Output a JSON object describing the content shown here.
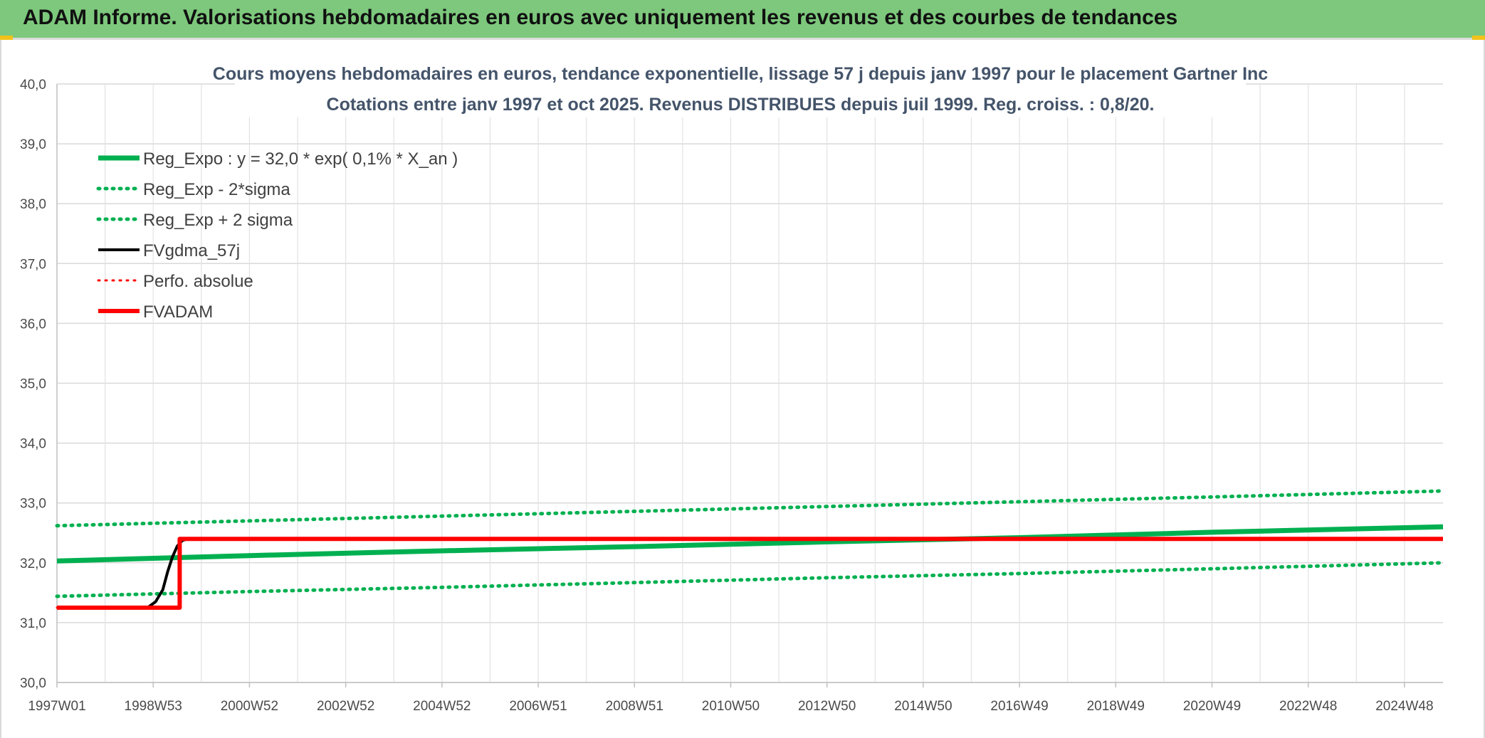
{
  "banner": {
    "title": "ADAM Informe. Valorisations hebdomadaires en euros avec uniquement les revenus et des courbes de tendances"
  },
  "colors": {
    "banner_bg": "#7dc87c",
    "green": "#00b050",
    "black": "#000000",
    "red": "#ff0000",
    "title": "#44546a"
  },
  "chart_data": {
    "type": "line",
    "title": "Cours moyens hebdomadaires en euros, tendance exponentielle, lissage 57 j depuis janv 1997 pour le placement Gartner Inc",
    "subtitle": "Cotations entre janv 1997 et oct 2025. Revenus DISTRIBUES depuis juil 1999. Reg. croiss. : 0,8/20.",
    "ylim": [
      30,
      40
    ],
    "y_ticks": [
      "30,0",
      "31,0",
      "32,0",
      "33,0",
      "34,0",
      "35,0",
      "36,0",
      "37,0",
      "38,0",
      "39,0",
      "40,0"
    ],
    "xlim": [
      1997.0,
      2025.8
    ],
    "x_tick_labels": [
      "1997W01",
      "1998W53",
      "2000W52",
      "2002W52",
      "2004W52",
      "2006W51",
      "2008W51",
      "2010W50",
      "2012W50",
      "2014W50",
      "2016W49",
      "2018W49",
      "2020W49",
      "2022W48",
      "2024W48"
    ],
    "x_ticks": [
      1997.0,
      1999.0,
      2001.0,
      2003.0,
      2005.0,
      2007.0,
      2009.0,
      2011.0,
      2013.0,
      2015.0,
      2017.0,
      2019.0,
      2021.0,
      2023.0,
      2025.0
    ],
    "legend_position": "top-left",
    "series": [
      {
        "name": "Reg_Expo : y = 32,0 * exp( 0,1% *  X_an )",
        "color": "#00b050",
        "style": "solid",
        "x": [
          1997.0,
          2001.0,
          2005.0,
          2009.0,
          2013.0,
          2017.0,
          2021.0,
          2025.8
        ],
        "y": [
          32.03,
          32.12,
          32.2,
          32.27,
          32.35,
          32.42,
          32.51,
          32.6
        ]
      },
      {
        "name": "Reg_Exp - 2*sigma",
        "color": "#00b050",
        "style": "dotted",
        "x": [
          1997.0,
          2001.0,
          2005.0,
          2009.0,
          2013.0,
          2017.0,
          2021.0,
          2025.8
        ],
        "y": [
          31.44,
          31.52,
          31.59,
          31.67,
          31.75,
          31.82,
          31.9,
          32.0
        ]
      },
      {
        "name": "Reg_Exp + 2 sigma",
        "color": "#00b050",
        "style": "dotted",
        "x": [
          1997.0,
          2001.0,
          2005.0,
          2009.0,
          2013.0,
          2017.0,
          2021.0,
          2025.8
        ],
        "y": [
          32.62,
          32.7,
          32.78,
          32.86,
          32.94,
          33.02,
          33.1,
          33.2
        ]
      },
      {
        "name": "FVgdma_57j",
        "color": "#000000",
        "style": "solid",
        "x": [
          1997.0,
          1998.9,
          1999.05,
          1999.2,
          1999.3,
          1999.4,
          1999.5,
          1999.6,
          1999.7,
          2025.8
        ],
        "y": [
          31.25,
          31.26,
          31.35,
          31.55,
          31.85,
          32.1,
          32.28,
          32.37,
          32.4,
          32.4
        ]
      },
      {
        "name": "Perfo. absolue",
        "color": "#ff0000",
        "style": "dotted",
        "x": [
          1997.0,
          1999.55,
          1999.55,
          2025.8
        ],
        "y": [
          31.25,
          31.25,
          32.4,
          32.4
        ]
      },
      {
        "name": "FVADAM",
        "color": "#ff0000",
        "style": "solid",
        "x": [
          1997.0,
          1999.55,
          1999.55,
          2025.8
        ],
        "y": [
          31.25,
          31.25,
          32.4,
          32.4
        ]
      }
    ]
  }
}
